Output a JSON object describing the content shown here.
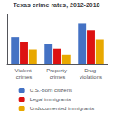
{
  "chart_data": {
    "type": "bar",
    "title": "Texas crime rates, 2012-2018",
    "categories": [
      "Violent crimes",
      "Property crimes",
      "Drug violations"
    ],
    "series": [
      {
        "name": "U.S.-born citizens",
        "color": "#4472c4",
        "values": [
          3.8,
          2.8,
          5.8
        ]
      },
      {
        "name": "Legal immigrants",
        "color": "#dd1111",
        "values": [
          3.1,
          2.2,
          4.8
        ]
      },
      {
        "name": "Undocumented immigrants",
        "color": "#e8a800",
        "values": [
          2.1,
          1.3,
          3.5
        ]
      }
    ],
    "ylim": [
      0,
      7
    ],
    "grid": false,
    "legend": "bottom",
    "tick_labels": "x"
  }
}
